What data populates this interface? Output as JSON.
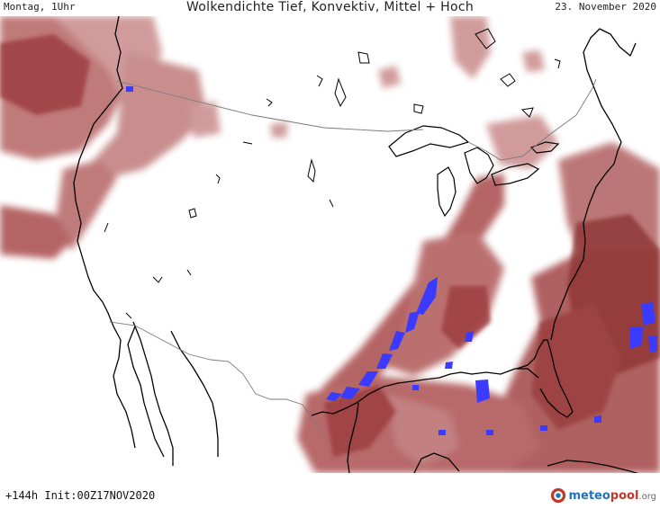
{
  "header": {
    "left": "Montag, 1Uhr",
    "title": "Wolkendichte  Tief, Konvektiv, Mittel + Hoch",
    "right": "23. November 2020"
  },
  "footer": {
    "run_info": "+144h Init:00Z17NOV2020"
  },
  "logo": {
    "part1": "meteo",
    "part2": "pool",
    "part3": ".org"
  },
  "colors": {
    "cloud": "#a8484a",
    "cloud_light": "#c98a8a",
    "cloud_dense": "#8a2f30",
    "convective": "#3b3bff",
    "coast": "#000000",
    "border": "#7a7a7a"
  }
}
